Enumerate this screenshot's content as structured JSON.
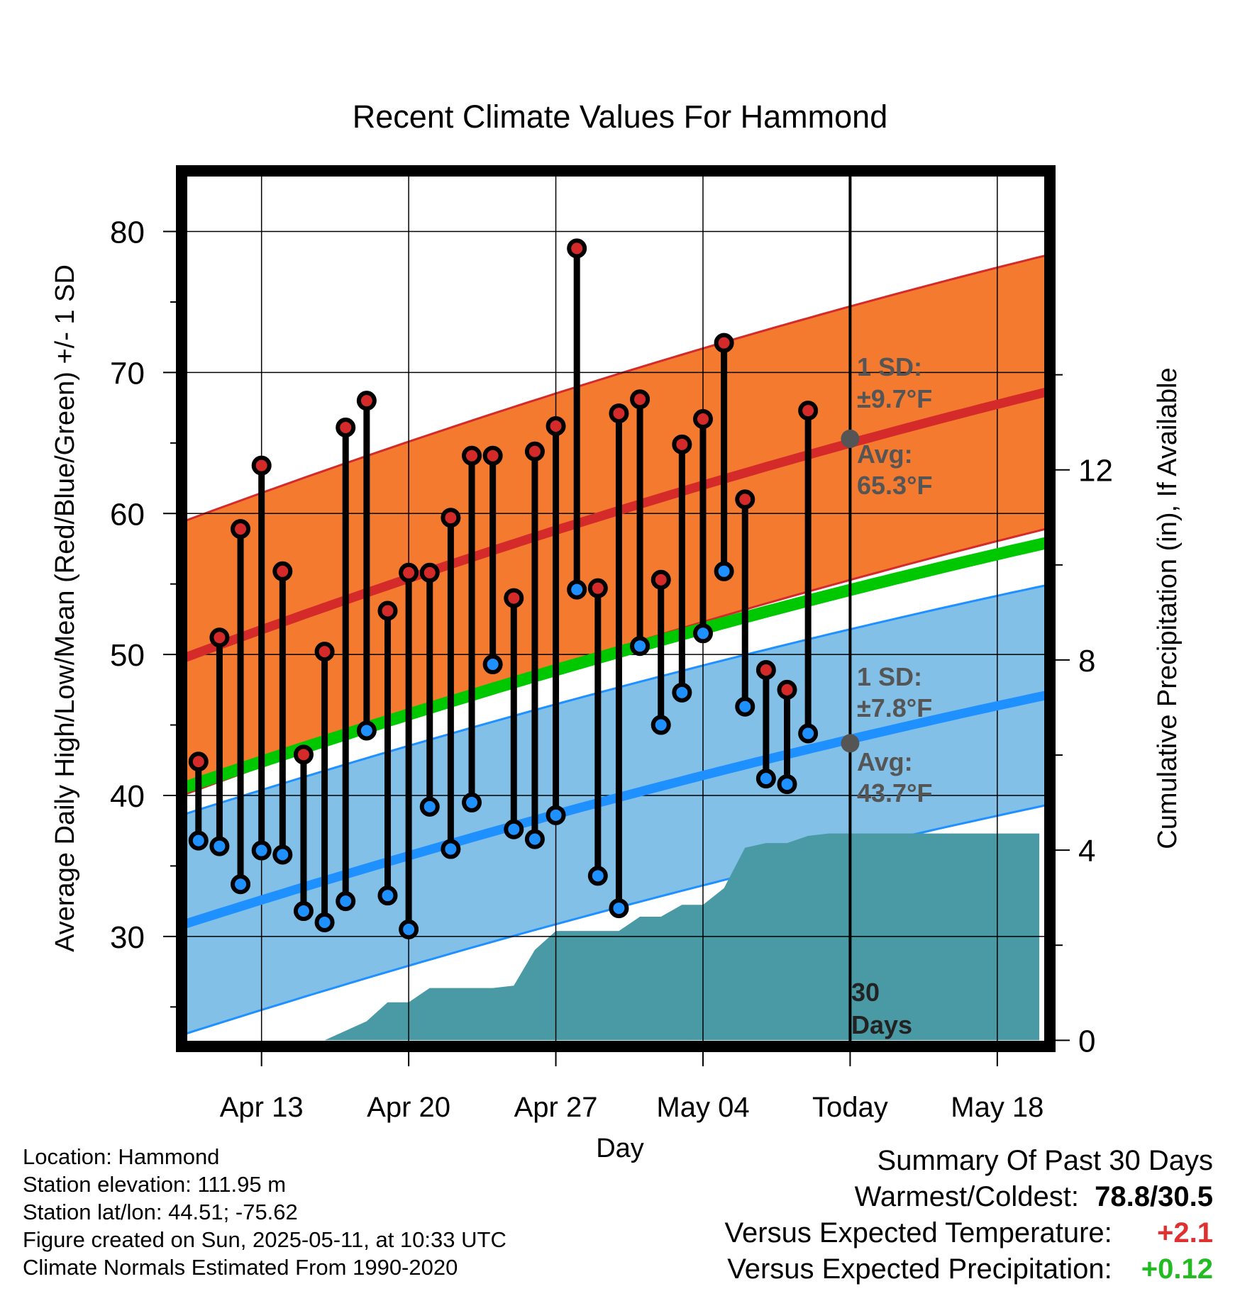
{
  "title": "Recent Climate Values For Hammond",
  "left_axis_label": "Average Daily High/Low/Mean (Red/Blue/Green) +/- 1 SD",
  "right_axis_label": "Cumulative Precipitation (in), If Available",
  "x_axis_label": "Day",
  "annotations": {
    "high_sd": "1 SD:",
    "high_sd_value": "±9.7°F",
    "high_avg": "Avg:",
    "high_avg_value": "65.3°F",
    "low_sd": "1 SD:",
    "low_sd_value": "±7.8°F",
    "low_avg": "Avg:",
    "low_avg_value": "43.7°F",
    "window_line1": "30",
    "window_line2": "Days"
  },
  "meta": {
    "location": "Location: Hammond",
    "elevation": "Station elevation: 111.95 m",
    "latlon": "Station lat/lon: 44.51; -75.62",
    "created": "Figure created on Sun, 2025-05-11, at 10:33 UTC",
    "normals": "Climate Normals Estimated From 1990-2020"
  },
  "summary": {
    "heading": "Summary Of Past 30 Days",
    "warm_cold_label": "Warmest/Coldest:",
    "warm_cold_value": "78.8/30.5",
    "temp_label": "Versus Expected Temperature:",
    "temp_value": "+2.1",
    "precip_label": "Versus Expected Precipitation:",
    "precip_value": "+0.12"
  },
  "colors": {
    "high_band": "#f47a30",
    "high_line": "#d42a2a",
    "low_band": "#82c0e8",
    "low_line": "#1e90ff",
    "mean_line": "#00c800",
    "precip": "#4a9aa5",
    "high_dot": "#d42a2a",
    "low_dot": "#1e90ff",
    "warm_value": "#e03030",
    "precip_value": "#22bb22",
    "annotation": "#555555"
  },
  "chart_data": {
    "type": "line",
    "x_ticks": [
      "Apr 13",
      "Apr 20",
      "Apr 27",
      "May 04",
      "Today",
      "May 18"
    ],
    "x_tick_days": [
      3,
      10,
      17,
      24,
      31,
      38
    ],
    "xlim": [
      -0.6,
      40.3
    ],
    "today_day": 31,
    "left_ylim": [
      22.5,
      84
    ],
    "left_ticks": [
      30,
      40,
      50,
      60,
      70,
      80
    ],
    "right_ylim": [
      -0.04,
      18.2
    ],
    "right_ticks": [
      0,
      4,
      8,
      12
    ],
    "normal_high": {
      "start": 49.8,
      "end": 68.6,
      "sd": 9.7
    },
    "normal_low": {
      "start": 30.9,
      "end": 47.1,
      "sd": 7.8
    },
    "normal_mean": {
      "start": 40.6,
      "end": 57.9
    },
    "today_high_avg": 65.3,
    "today_low_avg": 43.7,
    "days": [
      "Apr 11",
      "Apr 12",
      "Apr 13",
      "Apr 14",
      "Apr 15",
      "Apr 16",
      "Apr 17",
      "Apr 18",
      "Apr 19",
      "Apr 20",
      "Apr 21",
      "Apr 22",
      "Apr 23",
      "Apr 24",
      "Apr 25",
      "Apr 26",
      "Apr 27",
      "Apr 28",
      "Apr 29",
      "Apr 30",
      "May 01",
      "May 02",
      "May 03",
      "May 04",
      "May 05",
      "May 06",
      "May 07",
      "May 08",
      "May 09",
      "May 10"
    ],
    "highs": [
      42.4,
      51.2,
      58.9,
      63.4,
      55.9,
      42.9,
      50.2,
      66.1,
      68.0,
      53.1,
      55.8,
      55.8,
      59.7,
      64.1,
      64.1,
      54.0,
      64.4,
      66.2,
      78.8,
      54.7,
      67.1,
      68.1,
      55.3,
      64.9,
      66.7,
      72.1,
      61.0,
      48.9,
      47.5,
      67.3
    ],
    "lows": [
      36.8,
      36.4,
      33.7,
      36.1,
      35.8,
      31.8,
      31.0,
      32.5,
      44.6,
      32.9,
      30.5,
      39.2,
      36.2,
      39.5,
      49.3,
      37.6,
      36.9,
      38.6,
      54.6,
      34.3,
      32.0,
      50.6,
      45.0,
      47.3,
      51.5,
      55.9,
      46.3,
      41.2,
      40.8,
      44.4
    ],
    "precip_cumulative": [
      0,
      0,
      0,
      0,
      0,
      0,
      0,
      0.2,
      0.4,
      0.8,
      0.8,
      1.1,
      1.1,
      1.1,
      1.1,
      1.15,
      1.9,
      2.3,
      2.3,
      2.3,
      2.3,
      2.6,
      2.6,
      2.85,
      2.85,
      3.2,
      4.05,
      4.15,
      4.15,
      4.3,
      4.35,
      4.35,
      4.35
    ],
    "precip_days": [
      0,
      1,
      2,
      3,
      4,
      5,
      6,
      7,
      8,
      9,
      10,
      11,
      12,
      13,
      14,
      15,
      16,
      17,
      18,
      19,
      20,
      21,
      22,
      23,
      24,
      25,
      26,
      27,
      28,
      29,
      30,
      31,
      40
    ]
  }
}
